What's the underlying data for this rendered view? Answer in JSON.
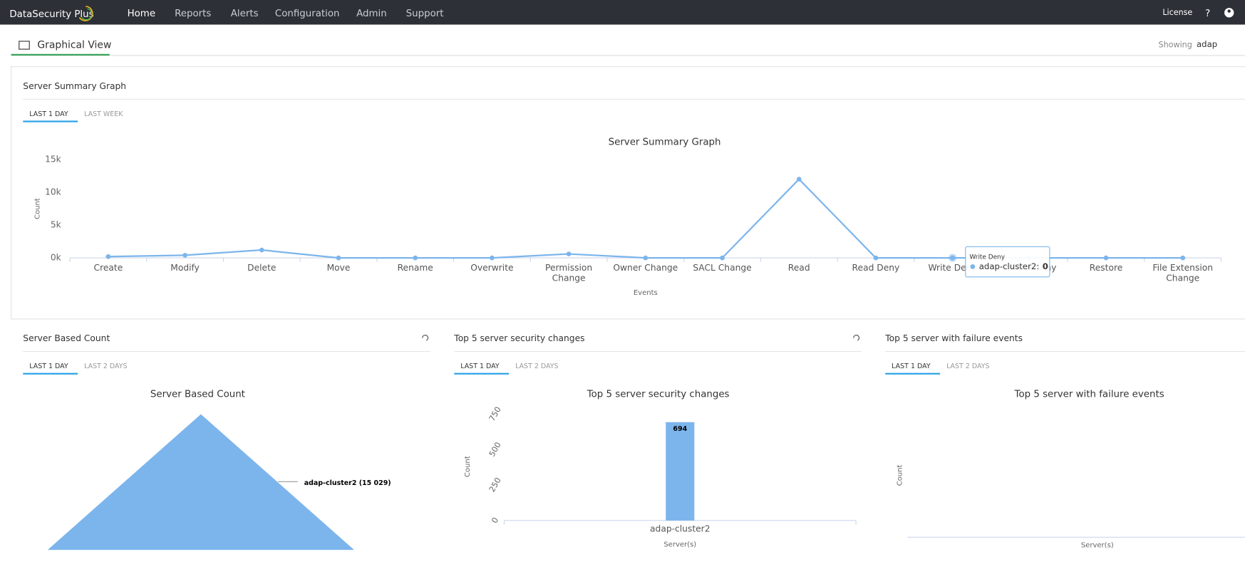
{
  "nav": {
    "brand": "DataSecurity Plus",
    "menu": [
      "Home",
      "Reports",
      "Alerts",
      "Configuration",
      "Admin",
      "Support"
    ],
    "license": "License",
    "help": "?"
  },
  "header": {
    "title": "Graphical View",
    "showing_label": "Showing",
    "showing_value": "adap"
  },
  "chart_data": [
    {
      "type": "line",
      "panel_title": "Server Summary Graph",
      "tabs": [
        "LAST 1 DAY",
        "LAST WEEK"
      ],
      "title": "Server Summary Graph",
      "x_label": "Events",
      "y_label": "Count",
      "categories": [
        "Create",
        "Modify",
        "Delete",
        "Move",
        "Rename",
        "Overwrite",
        "Permission Change",
        "Owner Change",
        "SACL Change",
        "Read",
        "Read Deny",
        "Write Deny",
        "Delete Deny",
        "Restore",
        "File Extension Change"
      ],
      "series": [
        {
          "name": "adap-cluster2",
          "color": "#7cb5ec",
          "values": [
            200,
            400,
            1200,
            0,
            0,
            0,
            600,
            0,
            0,
            12000,
            0,
            0,
            0,
            0,
            0
          ]
        }
      ],
      "ylim": [
        0,
        15000
      ],
      "yticks": [
        {
          "value": 0,
          "label": "0k"
        },
        {
          "value": 5000,
          "label": "5k"
        },
        {
          "value": 10000,
          "label": "10k"
        },
        {
          "value": 15000,
          "label": "15k"
        }
      ],
      "grid": false,
      "tooltip": {
        "header": "Write Deny",
        "text": "adap-cluster2:",
        "value": 0
      }
    },
    {
      "type": "pie",
      "panel_title": "Server Based Count",
      "tabs": [
        "LAST 1 DAY",
        "LAST 2 DAYS"
      ],
      "title": "Server Based Count",
      "categories": [
        "adap-cluster2"
      ],
      "values": [
        15029
      ],
      "value_labels": [
        "adap-cluster2 (15 029)"
      ],
      "color": "#7cb5ec"
    },
    {
      "type": "bar",
      "panel_title": "Top 5 server security changes",
      "tabs": [
        "LAST 1 DAY",
        "LAST 2 DAYS"
      ],
      "title": "Top 5 server security changes",
      "x_label": "Server(s)",
      "y_label": "Count",
      "categories": [
        "adap-cluster2"
      ],
      "values": [
        694
      ],
      "color": "#7cb5ec",
      "ylim": [
        0,
        750
      ],
      "yticks": [
        0,
        250,
        500,
        750
      ]
    },
    {
      "type": "bar",
      "panel_title": "Top 5 server with failure events",
      "tabs": [
        "LAST 1 DAY",
        "LAST 2 DAYS"
      ],
      "title": "Top 5 server with failure events",
      "x_label": "Server(s)",
      "y_label": "Count",
      "categories": [],
      "values": []
    }
  ]
}
